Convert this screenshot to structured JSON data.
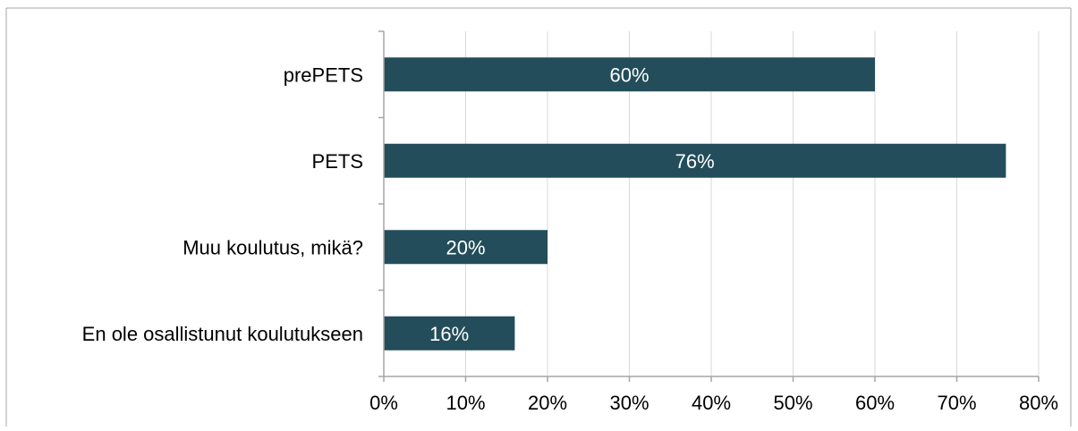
{
  "chart_data": {
    "type": "bar",
    "orientation": "horizontal",
    "categories": [
      "prePETS",
      "PETS",
      "Muu koulutus, mikä?",
      "En ole osallistunut koulutukseen"
    ],
    "values": [
      60,
      76,
      20,
      16
    ],
    "data_labels": [
      "60%",
      "76%",
      "20%",
      "16%"
    ],
    "x_ticks": [
      0,
      10,
      20,
      30,
      40,
      50,
      60,
      70,
      80
    ],
    "x_tick_labels": [
      "0%",
      "10%",
      "20%",
      "30%",
      "40%",
      "50%",
      "60%",
      "70%",
      "80%"
    ],
    "xlim": [
      0,
      80
    ],
    "grid": true,
    "legend": "none",
    "colors": {
      "bar": "#234d5a",
      "grid": "#d9d9d9",
      "axis": "#a6a6a6",
      "frame": "#a6a6a6",
      "text": "#000000",
      "label_text": "#ffffff"
    }
  }
}
